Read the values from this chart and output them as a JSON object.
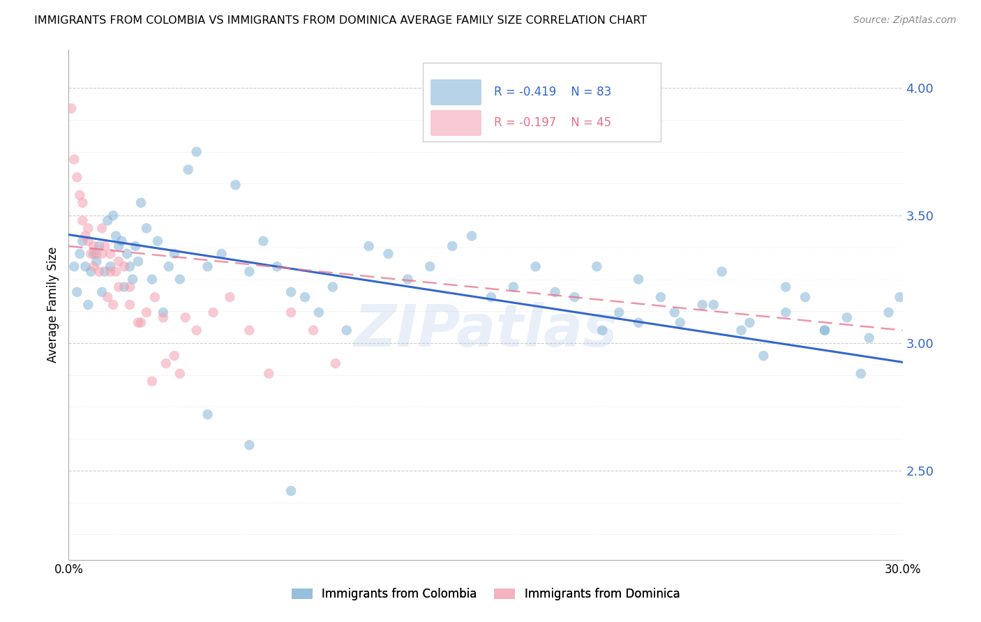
{
  "title": "IMMIGRANTS FROM COLOMBIA VS IMMIGRANTS FROM DOMINICA AVERAGE FAMILY SIZE CORRELATION CHART",
  "source": "Source: ZipAtlas.com",
  "ylabel": "Average Family Size",
  "xlim": [
    0.0,
    0.3
  ],
  "ylim": [
    2.15,
    4.15
  ],
  "yticks": [
    2.5,
    3.0,
    3.5,
    4.0
  ],
  "xticks": [
    0.0,
    0.05,
    0.1,
    0.15,
    0.2,
    0.25,
    0.3
  ],
  "xtick_labels": [
    "0.0%",
    "",
    "",
    "",
    "",
    "",
    "30.0%"
  ],
  "colombia_R": "-0.419",
  "colombia_N": "83",
  "dominica_R": "-0.197",
  "dominica_N": "45",
  "colombia_color": "#7BAFD4",
  "dominica_color": "#F4A0B0",
  "colombia_line_color": "#3366CC",
  "dominica_line_color": "#E8708A",
  "watermark": "ZIPatlas",
  "colombia_scatter_x": [
    0.002,
    0.003,
    0.004,
    0.005,
    0.006,
    0.007,
    0.008,
    0.009,
    0.01,
    0.011,
    0.012,
    0.013,
    0.014,
    0.015,
    0.016,
    0.017,
    0.018,
    0.019,
    0.02,
    0.021,
    0.022,
    0.023,
    0.024,
    0.025,
    0.026,
    0.028,
    0.03,
    0.032,
    0.034,
    0.036,
    0.038,
    0.04,
    0.043,
    0.046,
    0.05,
    0.055,
    0.06,
    0.065,
    0.07,
    0.075,
    0.08,
    0.085,
    0.09,
    0.095,
    0.1,
    0.108,
    0.115,
    0.122,
    0.13,
    0.138,
    0.145,
    0.152,
    0.16,
    0.168,
    0.175,
    0.182,
    0.19,
    0.198,
    0.205,
    0.213,
    0.22,
    0.228,
    0.235,
    0.242,
    0.25,
    0.258,
    0.265,
    0.272,
    0.28,
    0.288,
    0.192,
    0.205,
    0.218,
    0.232,
    0.245,
    0.258,
    0.272,
    0.285,
    0.295,
    0.299,
    0.05,
    0.065,
    0.08
  ],
  "colombia_scatter_y": [
    3.3,
    3.2,
    3.35,
    3.4,
    3.3,
    3.15,
    3.28,
    3.35,
    3.32,
    3.38,
    3.2,
    3.28,
    3.48,
    3.3,
    3.5,
    3.42,
    3.38,
    3.4,
    3.22,
    3.35,
    3.3,
    3.25,
    3.38,
    3.32,
    3.55,
    3.45,
    3.25,
    3.4,
    3.12,
    3.3,
    3.35,
    3.25,
    3.68,
    3.75,
    3.3,
    3.35,
    3.62,
    3.28,
    3.4,
    3.3,
    3.2,
    3.18,
    3.12,
    3.22,
    3.05,
    3.38,
    3.35,
    3.25,
    3.3,
    3.38,
    3.42,
    3.18,
    3.22,
    3.3,
    3.2,
    3.18,
    3.3,
    3.12,
    3.25,
    3.18,
    3.08,
    3.15,
    3.28,
    3.05,
    2.95,
    3.12,
    3.18,
    3.05,
    3.1,
    3.02,
    3.05,
    3.08,
    3.12,
    3.15,
    3.08,
    3.22,
    3.05,
    2.88,
    3.12,
    3.18,
    2.72,
    2.6,
    2.42
  ],
  "dominica_scatter_x": [
    0.001,
    0.002,
    0.003,
    0.004,
    0.005,
    0.006,
    0.007,
    0.008,
    0.009,
    0.01,
    0.011,
    0.012,
    0.013,
    0.014,
    0.015,
    0.016,
    0.017,
    0.018,
    0.02,
    0.022,
    0.025,
    0.028,
    0.031,
    0.034,
    0.038,
    0.042,
    0.046,
    0.052,
    0.058,
    0.065,
    0.072,
    0.08,
    0.088,
    0.096,
    0.005,
    0.007,
    0.009,
    0.012,
    0.015,
    0.018,
    0.022,
    0.026,
    0.03,
    0.035,
    0.04
  ],
  "dominica_scatter_y": [
    3.92,
    3.72,
    3.65,
    3.58,
    3.48,
    3.42,
    3.4,
    3.35,
    3.3,
    3.35,
    3.28,
    3.45,
    3.38,
    3.18,
    3.35,
    3.15,
    3.28,
    3.32,
    3.3,
    3.22,
    3.08,
    3.12,
    3.18,
    3.1,
    2.95,
    3.1,
    3.05,
    3.12,
    3.18,
    3.05,
    2.88,
    3.12,
    3.05,
    2.92,
    3.55,
    3.45,
    3.38,
    3.35,
    3.28,
    3.22,
    3.15,
    3.08,
    2.85,
    2.92,
    2.88
  ],
  "colombia_trendline_x": [
    0.0,
    0.3
  ],
  "colombia_trendline_y": [
    3.425,
    2.925
  ],
  "dominica_trendline_x": [
    0.0,
    0.3
  ],
  "dominica_trendline_y": [
    3.38,
    3.05
  ]
}
